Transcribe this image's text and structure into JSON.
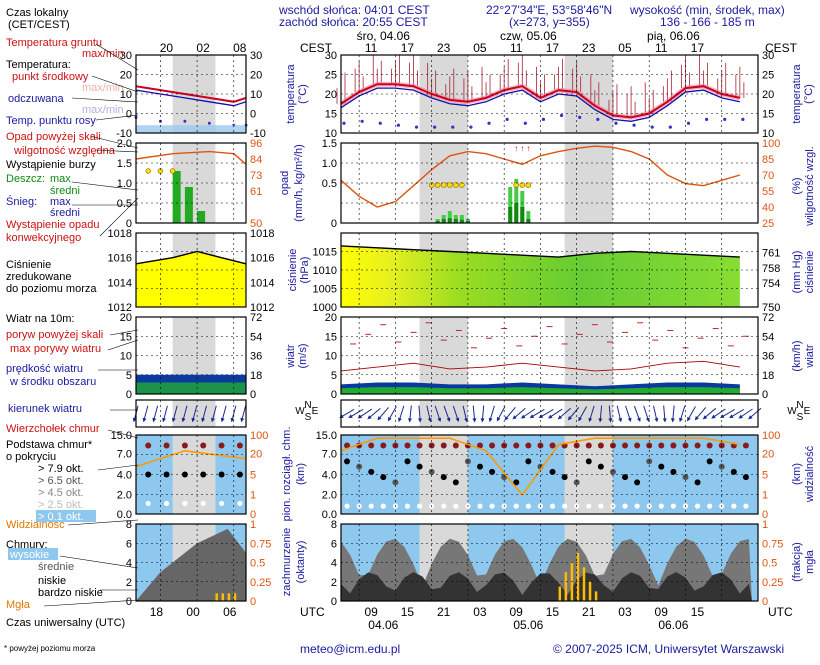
{
  "header": {
    "sunrise": "wschód słońca: 04:01 CEST",
    "sunset": "zachód słońca: 20:55 CEST",
    "coords": "22°27'34\"E, 53°58'46\"N",
    "grid": "(x=273, y=355)",
    "elev_title": "wysokość (min, środek, max)",
    "elev_values": "136 - 166 - 185 m"
  },
  "legend": {
    "local_time": "Czas lokalny",
    "local_time_zone": "(CET/CEST)",
    "legend_hours_top": [
      "20",
      "02",
      "08"
    ],
    "legend_hours_bottom": [
      "18",
      "00",
      "06"
    ],
    "ground_temp": "Temperatura gruntu",
    "maxmin": "max/min",
    "temperature": "Temperatura:",
    "mid_point": "punkt środkowy",
    "maxmin2": "max/min",
    "perceived": "odczuwana",
    "maxmin3": "max/min",
    "dew_point": "Temp. punktu rosy",
    "precip_over": "Opad powyżej skali",
    "humidity": "wilgotność względna",
    "storm": "Wystąpienie burzy",
    "rain": "Deszcz:",
    "max": "max",
    "mean": "średni",
    "snow": "Śnieg:",
    "precip_occ": "Wystąpienie opadu",
    "convective": "konwekcyjnego",
    "pressure1": "Ciśnienie",
    "pressure2": "zredukowane",
    "pressure3": "do poziomu morza",
    "wind10": "Wiatr na 10m:",
    "gust_over": "poryw powyżej skali",
    "max_gust": "max porywy wiatru",
    "wind_speed": "prędkość wiatru",
    "wind_area": "w środku obszaru",
    "wind_dir": "kierunek wiatru",
    "cloud_top": "Wierzchołek chmur",
    "cloud_base1": "Podstawa chmur*",
    "cloud_base2": "o pokryciu",
    "okt": [
      "> 7.9 okt.",
      "> 6.5 okt.",
      "> 4.5 okt.",
      "> 2.5 okt.",
      "> 0.1 okt."
    ],
    "visibility": "Widzialność",
    "clouds": "Chmury:",
    "high": "wysokie",
    "medium": "średnie",
    "low": "niskie",
    "very_low": "bardzo niskie",
    "fog": "Mgła",
    "utc_label": "Czas uniwersalny (UTC)",
    "footnote": "* powyżej poziomu morza"
  },
  "axes": {
    "cest": "CEST",
    "utc": "UTC",
    "days_top": [
      "śro, 04.06",
      "czw, 05.06",
      "pią, 06.06"
    ],
    "hours_top": [
      "11",
      "17",
      "23",
      "05",
      "11",
      "17",
      "23",
      "05",
      "11",
      "17"
    ],
    "hours_bottom": [
      "09",
      "15",
      "21",
      "03",
      "09",
      "15",
      "21",
      "03",
      "09",
      "15"
    ],
    "days_bottom": [
      "04.06",
      "05.06",
      "06.06"
    ],
    "temp_label": "temperatura",
    "temp_unit": "(°C)",
    "precip_label": "opad",
    "precip_unit": "(mm/h, kg/m²/h)",
    "hum_label": "wilgotność wzgl.",
    "hum_unit": "(%)",
    "press_label": "ciśnienie",
    "press_unit": "(hPa)",
    "press_unit_r": "(mm Hg)",
    "wind_label": "wiatr",
    "wind_unit": "(m/s)",
    "wind_unit_r": "(km/h)",
    "compass": [
      "N",
      "W",
      "E",
      "S"
    ],
    "cloudbase_label": "pion. rozciągł. chm.",
    "cloudbase_unit": "(km)",
    "vis_label": "widzialność",
    "vis_unit": "(km)",
    "cover_label": "zachmurzenie",
    "cover_unit": "(oktanty)",
    "fog_label": "mgła",
    "fog_unit": "(frakcja)"
  },
  "footer": {
    "email": "meteo@icm.edu.pl",
    "copyright": "© 2007-2025 ICM, Uniwersytet Warszawski"
  },
  "colors": {
    "temp": "#cc0022",
    "dew": "#3333cc",
    "perceived": "#1010b0",
    "humidity": "#dd5511",
    "rain": "#22aa22",
    "pressure_high": "#ffff00",
    "pressure_low": "#33aa33",
    "wind_dark": "#0a3aa0",
    "wind_mid": "#22aa33",
    "sky": "#8ec8ee",
    "night": "#c8c8c8"
  },
  "chart_data": [
    {
      "type": "line",
      "name": "temperature",
      "x_hours_utc": [
        6,
        9,
        12,
        15,
        18,
        21,
        24,
        27,
        30,
        33,
        36,
        39,
        42,
        45,
        48,
        51,
        54,
        57,
        60,
        63,
        66,
        69,
        72
      ],
      "temp_mid": [
        17.5,
        20.5,
        22.5,
        22.5,
        22,
        20,
        18.5,
        18,
        19,
        21,
        22,
        19,
        21,
        20.5,
        17,
        14.5,
        14,
        15,
        18,
        21.5,
        22,
        20,
        19
      ],
      "dew_point": [
        14,
        14.5,
        14,
        13.5,
        13,
        13,
        13,
        13,
        14,
        15,
        14,
        15,
        16,
        15.5,
        15,
        14,
        13.5,
        13,
        13,
        14,
        15,
        15,
        15
      ],
      "ylim": [
        10,
        30
      ]
    },
    {
      "type": "bar",
      "name": "precipitation",
      "x_hours_utc": [
        22,
        23,
        24,
        25,
        26,
        27,
        34,
        35,
        36,
        37
      ],
      "rain_max": [
        0.1,
        0.2,
        0.3,
        0.2,
        0.2,
        0.1,
        0.9,
        1.1,
        0.8,
        0.3
      ],
      "rain_mean": [
        0.05,
        0.1,
        0.12,
        0.1,
        0.08,
        0.05,
        0.4,
        0.5,
        0.4,
        0.1
      ],
      "ylim": [
        0,
        2.0
      ]
    },
    {
      "type": "line",
      "name": "humidity",
      "x_hours_utc": [
        6,
        9,
        12,
        15,
        18,
        21,
        24,
        27,
        30,
        33,
        36,
        39,
        42,
        45,
        48,
        51,
        54,
        57,
        60,
        63,
        66,
        69,
        72
      ],
      "values": [
        65,
        50,
        40,
        45,
        60,
        75,
        88,
        92,
        90,
        85,
        80,
        88,
        92,
        95,
        97,
        96,
        92,
        85,
        70,
        62,
        60,
        65,
        70
      ],
      "ylim": [
        25,
        100
      ]
    },
    {
      "type": "area",
      "name": "pressure",
      "x_hours_utc": [
        6,
        12,
        18,
        24,
        30,
        36,
        42,
        48,
        54,
        60,
        66,
        72
      ],
      "values": [
        1016.5,
        1016,
        1015.5,
        1015,
        1014.5,
        1014,
        1013.5,
        1014.5,
        1015,
        1014.5,
        1014,
        1013.5
      ],
      "ylim": [
        1000,
        1020
      ]
    },
    {
      "type": "area",
      "name": "wind",
      "x_hours_utc": [
        6,
        12,
        18,
        24,
        30,
        36,
        42,
        48,
        54,
        60,
        66,
        72
      ],
      "speed": [
        2.5,
        3,
        3,
        2.5,
        2.5,
        3,
        2.5,
        2,
        2.5,
        3,
        3,
        2.5
      ],
      "gust": [
        6,
        7,
        8,
        6.5,
        7,
        8,
        7,
        6,
        6.5,
        8,
        8.5,
        7
      ],
      "ylim": [
        0,
        20
      ]
    },
    {
      "type": "scatter",
      "name": "cloud_base",
      "x_hours_utc": [
        6,
        12,
        18,
        24,
        30,
        36,
        42,
        48,
        54,
        60,
        66,
        72
      ],
      "base_km": [
        13,
        13,
        13,
        13,
        12.5,
        12,
        13,
        13,
        13,
        13,
        13,
        13
      ],
      "visibility_km": [
        20,
        24,
        24,
        24,
        20,
        6,
        22,
        24,
        24,
        24,
        24,
        22
      ],
      "ylim": [
        0,
        15
      ]
    },
    {
      "type": "area",
      "name": "cloud_cover",
      "x_hours_utc": [
        6,
        12,
        18,
        24,
        30,
        36,
        42,
        48,
        54,
        60,
        66,
        72
      ],
      "low_okt": [
        2,
        1.5,
        1,
        1.5,
        2,
        1.5,
        2.5,
        3,
        1.5,
        1,
        1.5,
        2
      ],
      "fog": [
        0,
        0,
        0,
        0,
        0,
        0,
        0.3,
        0.6,
        0,
        0,
        0,
        0
      ],
      "ylim": [
        0,
        8
      ]
    }
  ]
}
